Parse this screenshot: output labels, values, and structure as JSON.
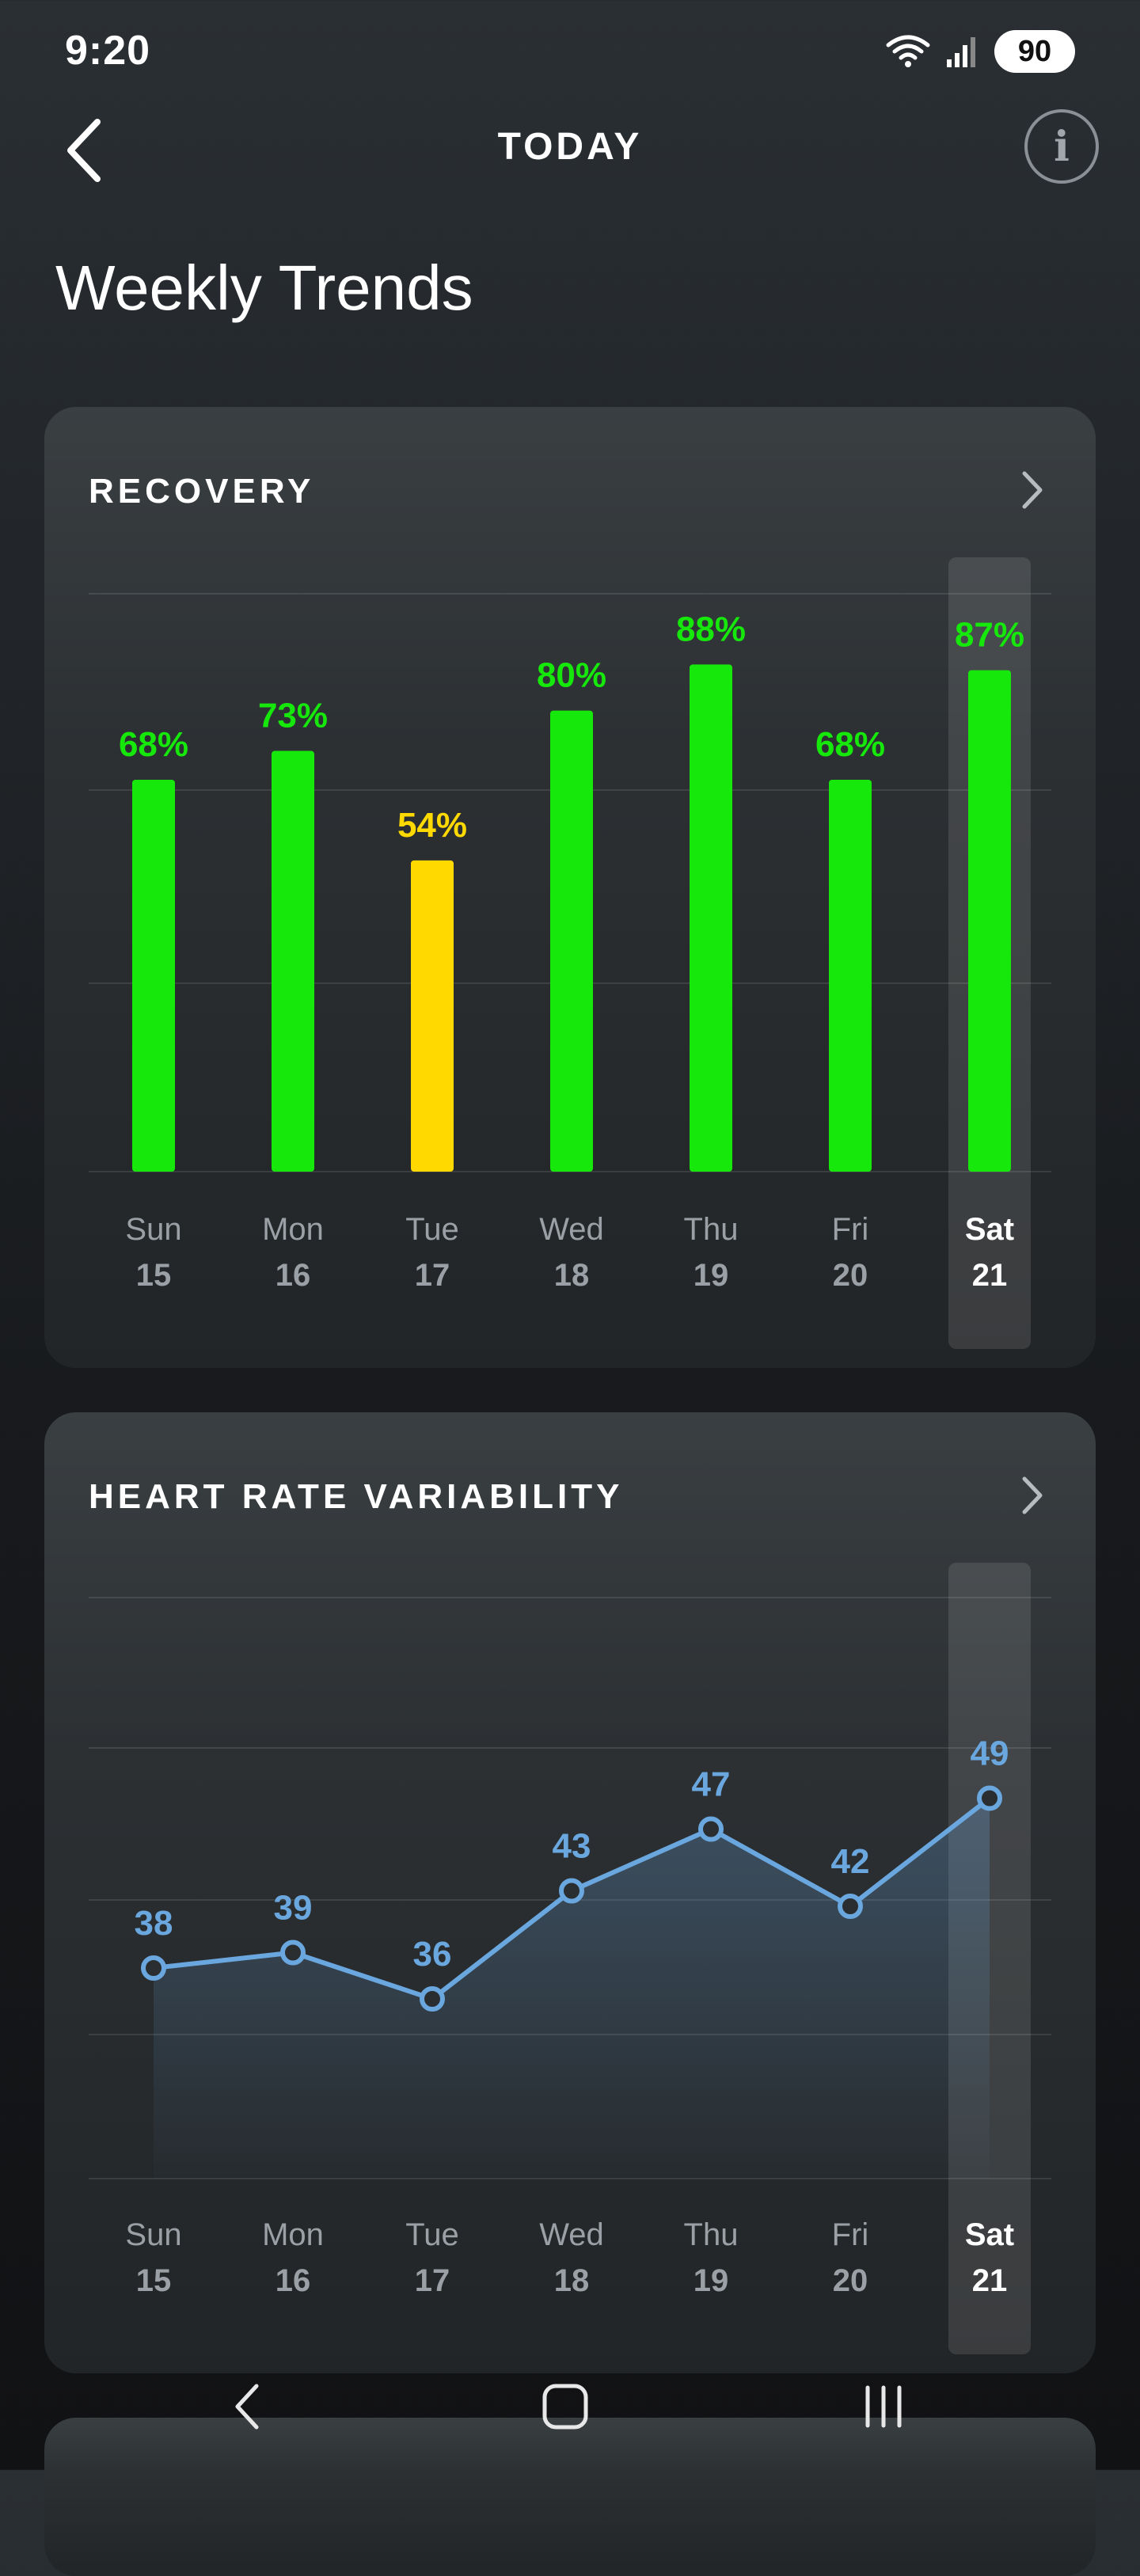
{
  "status_bar": {
    "time": "9:20",
    "battery": "90"
  },
  "header": {
    "title": "TODAY"
  },
  "page_title": "Weekly Trends",
  "days": [
    {
      "name": "Sun",
      "date": "15"
    },
    {
      "name": "Mon",
      "date": "16"
    },
    {
      "name": "Tue",
      "date": "17"
    },
    {
      "name": "Wed",
      "date": "18"
    },
    {
      "name": "Thu",
      "date": "19"
    },
    {
      "name": "Fri",
      "date": "20"
    },
    {
      "name": "Sat",
      "date": "21"
    }
  ],
  "colors": {
    "green": "#17e80c",
    "yellow": "#ffd900",
    "blue": "#6aa7df",
    "text_gray": "#9aa0a5"
  },
  "recovery": {
    "title": "RECOVERY",
    "chart_data": {
      "type": "bar",
      "categories": [
        "Sun 15",
        "Mon 16",
        "Tue 17",
        "Wed 18",
        "Thu 19",
        "Fri 20",
        "Sat 21"
      ],
      "values": [
        68,
        73,
        54,
        80,
        88,
        68,
        87
      ],
      "labels": [
        "68%",
        "73%",
        "54%",
        "80%",
        "88%",
        "68%",
        "87%"
      ],
      "bar_colors": [
        "green",
        "green",
        "yellow",
        "green",
        "green",
        "green",
        "green"
      ],
      "ylim": [
        0,
        100
      ],
      "highlighted": "Sat 21"
    }
  },
  "hrv": {
    "title": "HEART RATE VARIABILITY",
    "chart_data": {
      "type": "line",
      "categories": [
        "Sun 15",
        "Mon 16",
        "Tue 17",
        "Wed 18",
        "Thu 19",
        "Fri 20",
        "Sat 21"
      ],
      "values": [
        38,
        39,
        36,
        43,
        47,
        42,
        49
      ],
      "labels": [
        "38",
        "39",
        "36",
        "43",
        "47",
        "42",
        "49"
      ],
      "ylim": [
        22,
        62
      ],
      "highlighted": "Sat 21"
    }
  }
}
